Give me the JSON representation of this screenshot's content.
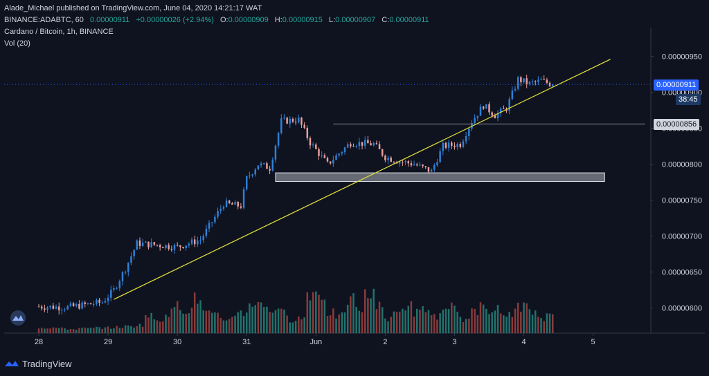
{
  "header": {
    "line1": "Alade_Michael published on TradingView.com, June 04, 2020 14:21:17 WAT",
    "symbol": "BINANCE:ADABTC, 60",
    "last": "0.00000911",
    "change": "+0.00000026 (+2.94%)",
    "o_label": "O:",
    "o_value": "0.00000909",
    "h_label": "H:",
    "h_value": "0.00000915",
    "l_label": "L:",
    "l_value": "0.00000907",
    "c_label": "C:",
    "c_value": "0.00000911"
  },
  "legend": {
    "instrument": "Cardano / Bitcoin, 1h, BINANCE",
    "vol": "Vol (20)"
  },
  "price_tags": {
    "last": "0.00000911",
    "timer": "38:45",
    "level": "0.00000856"
  },
  "footer": {
    "brand": "TradingView"
  },
  "colors": {
    "background": "#0f1320",
    "up": "#2f7fd4",
    "down": "#e8a09b",
    "vol_up": "#22726c",
    "vol_down": "#8a3a3a",
    "trendline": "#d8d83a",
    "support_zone": "#d1d4dc"
  },
  "chart_data": {
    "type": "candlestick",
    "y_tick_labels": [
      "0.00000950",
      "0.00000900",
      "0.00000850",
      "0.00000800",
      "0.00000750",
      "0.00000700",
      "0.00000650",
      "0.00000600"
    ],
    "y_ticks": [
      950,
      900,
      850,
      800,
      750,
      700,
      650,
      600
    ],
    "ylim": [
      565,
      990
    ],
    "x_tick_labels": [
      "28",
      "29",
      "30",
      "31",
      "Jun",
      "2",
      "3",
      "4",
      "5"
    ],
    "x_ticks": [
      0,
      24,
      48,
      72,
      96,
      120,
      144,
      168,
      192
    ],
    "x_range": [
      -12,
      212
    ],
    "close_path": [
      [
        0,
        602
      ],
      [
        10,
        601
      ],
      [
        22,
        608
      ],
      [
        26,
        625
      ],
      [
        30,
        655
      ],
      [
        34,
        690
      ],
      [
        40,
        688
      ],
      [
        48,
        685
      ],
      [
        56,
        695
      ],
      [
        64,
        745
      ],
      [
        70,
        742
      ],
      [
        72,
        780
      ],
      [
        76,
        800
      ],
      [
        80,
        795
      ],
      [
        84,
        860
      ],
      [
        90,
        862
      ],
      [
        94,
        830
      ],
      [
        100,
        800
      ],
      [
        108,
        830
      ],
      [
        116,
        828
      ],
      [
        120,
        810
      ],
      [
        124,
        805
      ],
      [
        130,
        800
      ],
      [
        136,
        790
      ],
      [
        140,
        825
      ],
      [
        146,
        828
      ],
      [
        150,
        860
      ],
      [
        154,
        882
      ],
      [
        158,
        868
      ],
      [
        162,
        878
      ],
      [
        166,
        918
      ],
      [
        170,
        912
      ],
      [
        174,
        916
      ],
      [
        178,
        911
      ]
    ],
    "last_price": 911,
    "support_zone": {
      "x": [
        82,
        196
      ],
      "y": [
        776,
        788
      ]
    },
    "resistance_level": {
      "x": [
        102,
        210
      ],
      "y": 856
    },
    "trendline": {
      "x": [
        26,
        198
      ],
      "y": [
        612,
        946
      ]
    },
    "volume_profile": [
      0.08,
      0.08,
      0.07,
      0.06,
      0.07,
      0.07,
      0.08,
      0.08,
      0.09,
      0.1,
      0.12,
      0.25,
      0.2,
      0.3,
      0.4,
      0.35,
      0.5,
      0.3,
      0.25,
      0.2,
      0.28,
      0.3,
      0.45,
      0.4,
      0.35,
      0.3,
      0.2,
      0.22,
      0.6,
      0.55,
      0.3,
      0.25,
      0.5,
      0.35,
      0.55,
      0.45,
      0.2,
      0.3,
      0.4,
      0.3,
      0.35,
      0.25,
      0.3,
      0.4,
      0.2,
      0.3,
      0.45,
      0.35,
      0.25,
      0.3,
      0.4,
      0.3,
      0.2,
      0.28
    ]
  }
}
